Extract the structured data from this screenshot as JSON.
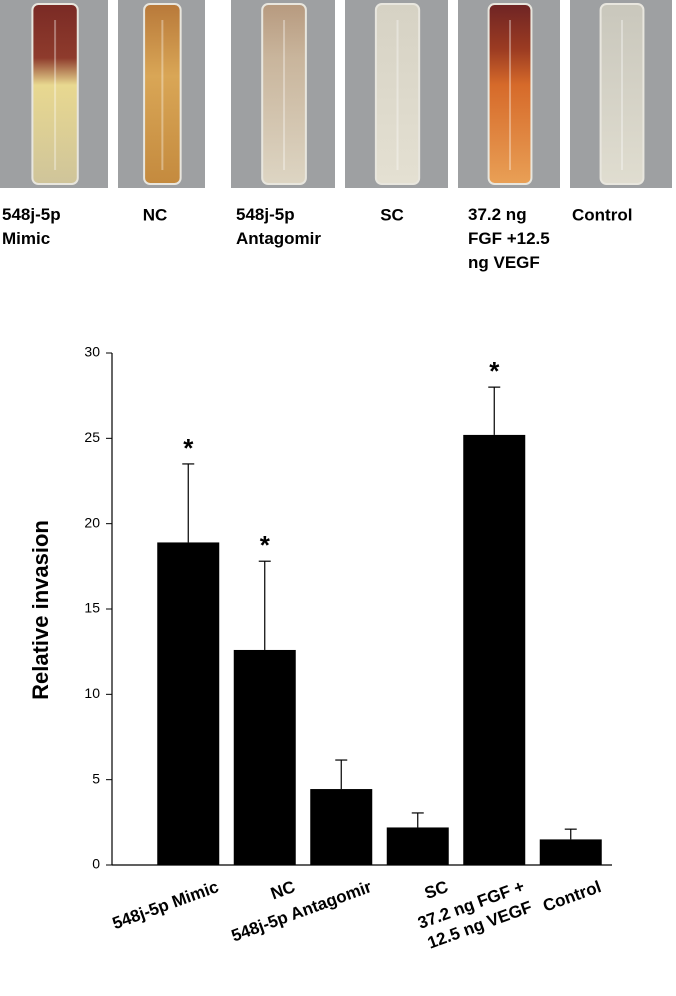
{
  "photo_panel": {
    "labels": [
      "548j-5p\nMimic",
      "NC",
      "548j-5p\nAntagomir",
      "SC",
      "37.2 ng\nFGF +12.5\nng VEGF",
      "Control"
    ]
  },
  "chart_data": {
    "type": "bar",
    "y_label": "Relative invasion",
    "categories": [
      "548j-5p Mimic",
      "NC",
      "548j-5p Antagomir",
      "SC",
      "37.2 ng FGF +\n12.5 ng VEGF",
      "Control"
    ],
    "values": [
      18.9,
      12.6,
      4.45,
      2.2,
      25.2,
      1.5
    ],
    "errors": [
      4.6,
      5.2,
      1.7,
      0.85,
      2.8,
      0.6
    ],
    "annotations": [
      "*",
      "*",
      null,
      null,
      "*",
      null
    ],
    "color": "#000000",
    "ylim": [
      0,
      30
    ],
    "yticks": [
      0,
      5,
      10,
      15,
      20,
      25,
      30
    ]
  }
}
